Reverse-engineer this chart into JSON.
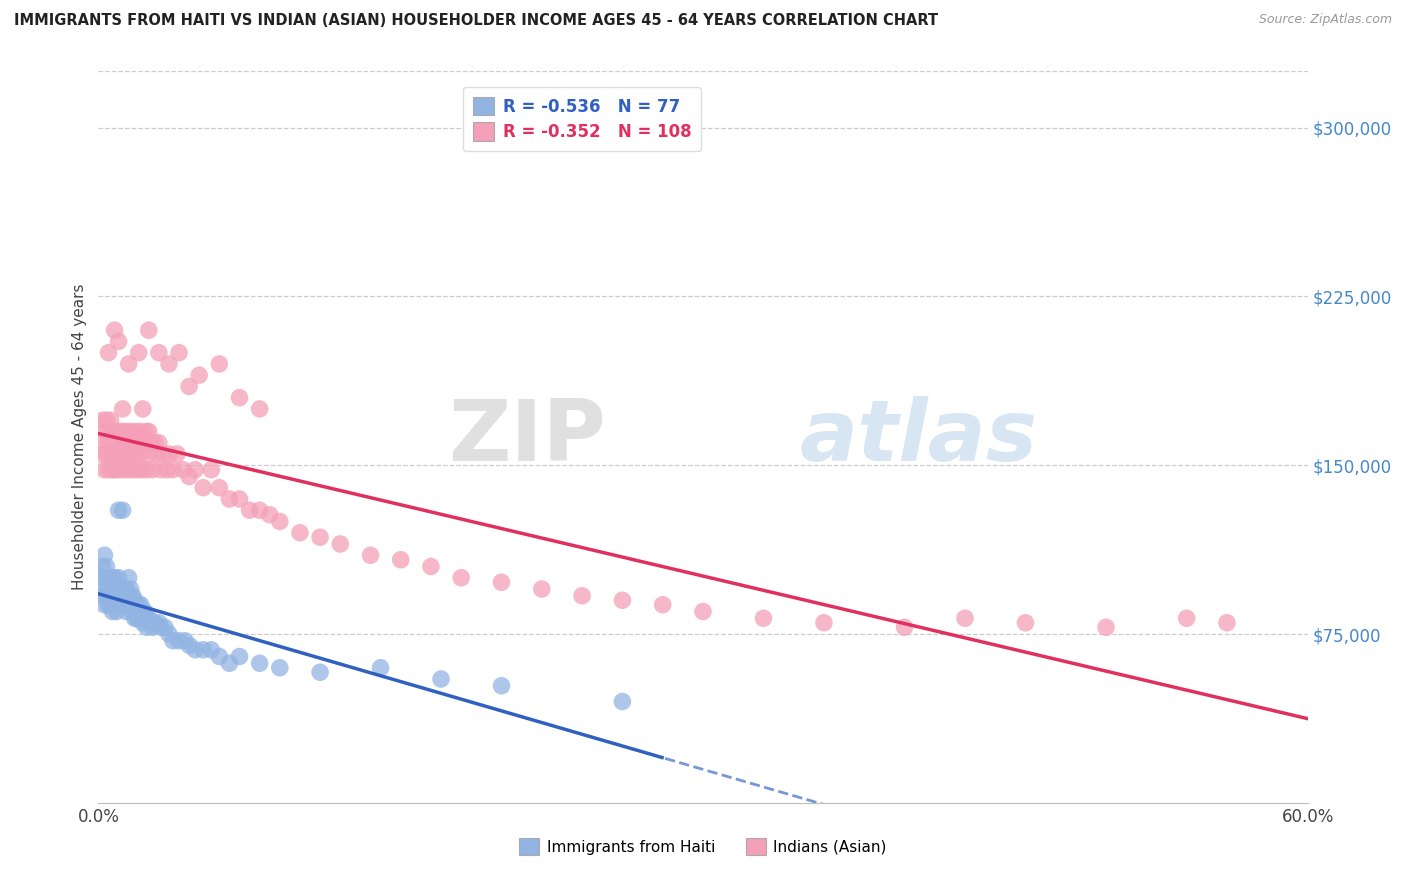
{
  "title": "IMMIGRANTS FROM HAITI VS INDIAN (ASIAN) HOUSEHOLDER INCOME AGES 45 - 64 YEARS CORRELATION CHART",
  "source": "Source: ZipAtlas.com",
  "ylabel": "Householder Income Ages 45 - 64 years",
  "xlim": [
    0.0,
    0.6
  ],
  "ylim": [
    0,
    325000
  ],
  "ytick_vals": [
    75000,
    150000,
    225000,
    300000
  ],
  "xtick_vals": [
    0.0,
    0.6
  ],
  "xtick_labels": [
    "0.0%",
    "60.0%"
  ],
  "legend_r_haiti": "-0.536",
  "legend_n_haiti": "77",
  "legend_r_indian": "-0.352",
  "legend_n_indian": "108",
  "legend_label_haiti": "Immigrants from Haiti",
  "legend_label_indian": "Indians (Asian)",
  "haiti_color": "#92b4e3",
  "haiti_line_color": "#3060c0",
  "indian_color": "#f4a0b8",
  "indian_line_color": "#e03060",
  "watermark_zip": "ZIP",
  "watermark_atlas": "atlas",
  "background_color": "#ffffff",
  "haiti_x": [
    0.001,
    0.002,
    0.002,
    0.003,
    0.003,
    0.003,
    0.004,
    0.004,
    0.004,
    0.005,
    0.005,
    0.005,
    0.006,
    0.006,
    0.007,
    0.007,
    0.007,
    0.008,
    0.008,
    0.008,
    0.009,
    0.009,
    0.01,
    0.01,
    0.01,
    0.011,
    0.011,
    0.012,
    0.012,
    0.013,
    0.013,
    0.014,
    0.014,
    0.015,
    0.015,
    0.015,
    0.016,
    0.016,
    0.017,
    0.017,
    0.018,
    0.018,
    0.019,
    0.019,
    0.02,
    0.02,
    0.021,
    0.022,
    0.022,
    0.023,
    0.024,
    0.024,
    0.025,
    0.026,
    0.027,
    0.028,
    0.03,
    0.031,
    0.033,
    0.035,
    0.037,
    0.04,
    0.043,
    0.045,
    0.048,
    0.052,
    0.056,
    0.06,
    0.065,
    0.07,
    0.08,
    0.09,
    0.11,
    0.14,
    0.17,
    0.2,
    0.26
  ],
  "haiti_y": [
    100000,
    105000,
    92000,
    110000,
    95000,
    88000,
    100000,
    92000,
    105000,
    95000,
    88000,
    100000,
    92000,
    88000,
    100000,
    92000,
    85000,
    95000,
    88000,
    100000,
    85000,
    92000,
    100000,
    88000,
    130000,
    92000,
    88000,
    130000,
    95000,
    88000,
    92000,
    95000,
    85000,
    100000,
    92000,
    88000,
    95000,
    88000,
    92000,
    85000,
    90000,
    82000,
    88000,
    82000,
    88000,
    82000,
    88000,
    85000,
    80000,
    85000,
    82000,
    78000,
    82000,
    80000,
    78000,
    80000,
    80000,
    78000,
    78000,
    75000,
    72000,
    72000,
    72000,
    70000,
    68000,
    68000,
    68000,
    65000,
    62000,
    65000,
    62000,
    60000,
    58000,
    60000,
    55000,
    52000,
    45000
  ],
  "indian_x": [
    0.001,
    0.002,
    0.002,
    0.003,
    0.003,
    0.004,
    0.004,
    0.005,
    0.005,
    0.005,
    0.006,
    0.006,
    0.007,
    0.007,
    0.008,
    0.008,
    0.009,
    0.009,
    0.01,
    0.01,
    0.011,
    0.011,
    0.012,
    0.012,
    0.012,
    0.013,
    0.013,
    0.014,
    0.014,
    0.015,
    0.015,
    0.016,
    0.016,
    0.017,
    0.017,
    0.018,
    0.018,
    0.019,
    0.019,
    0.02,
    0.02,
    0.021,
    0.021,
    0.022,
    0.022,
    0.023,
    0.024,
    0.024,
    0.025,
    0.025,
    0.026,
    0.027,
    0.028,
    0.029,
    0.03,
    0.031,
    0.032,
    0.034,
    0.035,
    0.037,
    0.039,
    0.042,
    0.045,
    0.048,
    0.052,
    0.056,
    0.06,
    0.065,
    0.07,
    0.075,
    0.08,
    0.085,
    0.09,
    0.1,
    0.11,
    0.12,
    0.135,
    0.15,
    0.165,
    0.18,
    0.2,
    0.22,
    0.24,
    0.26,
    0.28,
    0.3,
    0.33,
    0.36,
    0.4,
    0.43,
    0.46,
    0.5,
    0.54,
    0.56,
    0.005,
    0.008,
    0.01,
    0.015,
    0.02,
    0.025,
    0.03,
    0.035,
    0.04,
    0.045,
    0.05,
    0.06,
    0.07,
    0.08
  ],
  "indian_y": [
    160000,
    170000,
    155000,
    165000,
    148000,
    170000,
    155000,
    165000,
    148000,
    160000,
    170000,
    155000,
    165000,
    148000,
    160000,
    148000,
    165000,
    155000,
    160000,
    148000,
    165000,
    155000,
    175000,
    160000,
    148000,
    165000,
    155000,
    160000,
    148000,
    165000,
    155000,
    160000,
    148000,
    165000,
    155000,
    160000,
    148000,
    165000,
    155000,
    160000,
    148000,
    165000,
    155000,
    175000,
    148000,
    160000,
    165000,
    148000,
    165000,
    155000,
    160000,
    148000,
    160000,
    155000,
    160000,
    148000,
    155000,
    148000,
    155000,
    148000,
    155000,
    148000,
    145000,
    148000,
    140000,
    148000,
    140000,
    135000,
    135000,
    130000,
    130000,
    128000,
    125000,
    120000,
    118000,
    115000,
    110000,
    108000,
    105000,
    100000,
    98000,
    95000,
    92000,
    90000,
    88000,
    85000,
    82000,
    80000,
    78000,
    82000,
    80000,
    78000,
    82000,
    80000,
    200000,
    210000,
    205000,
    195000,
    200000,
    210000,
    200000,
    195000,
    200000,
    185000,
    190000,
    195000,
    180000,
    175000
  ]
}
